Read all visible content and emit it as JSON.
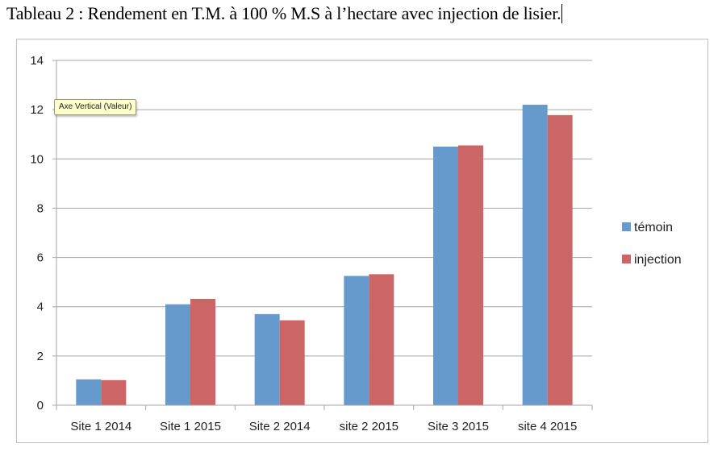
{
  "document": {
    "title": "Tableau 2 : Rendement en T.M. à 100 % M.S à l’hectare avec injection de lisier."
  },
  "tooltip": {
    "text": "Axe Vertical (Valeur)"
  },
  "colors": {
    "temoin": "#6699cc",
    "injection": "#cc6666",
    "grid": "#a6a6a6"
  },
  "chart_data": {
    "type": "bar",
    "categories": [
      "Site 1 2014",
      "Site 1 2015",
      "Site 2 2014",
      "site 2 2015",
      "Site 3 2015",
      "site 4 2015"
    ],
    "series": [
      {
        "name": "témoin",
        "values": [
          1.05,
          4.1,
          3.7,
          5.25,
          10.5,
          12.2
        ]
      },
      {
        "name": "injection",
        "values": [
          1.02,
          4.32,
          3.45,
          5.32,
          10.55,
          11.78
        ]
      }
    ],
    "title": "",
    "xlabel": "",
    "ylabel": "",
    "ylim": [
      0,
      14
    ],
    "yticks": [
      0,
      2,
      4,
      6,
      8,
      10,
      12,
      14
    ],
    "grid": true,
    "legend": "right"
  }
}
